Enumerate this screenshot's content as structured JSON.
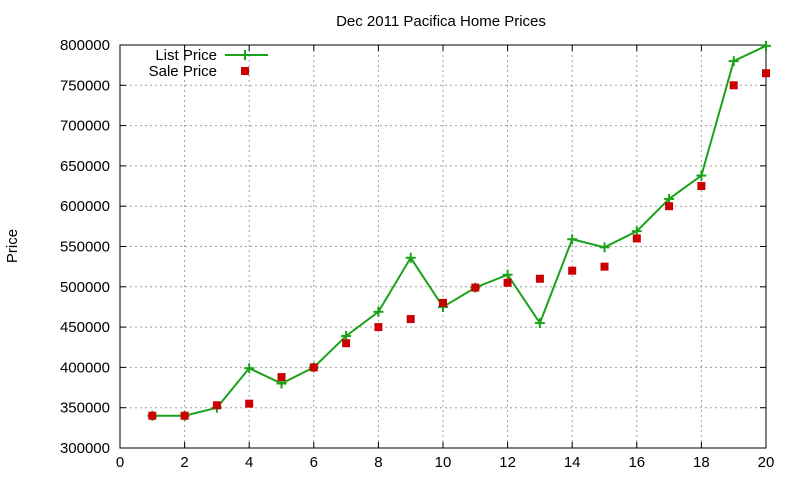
{
  "chart_data": {
    "type": "line",
    "title": "Dec 2011 Pacifica Home Prices",
    "xlabel": "",
    "ylabel": "Price",
    "xlim": [
      0,
      20
    ],
    "ylim": [
      300000,
      800000
    ],
    "x_ticks": [
      "0",
      "2",
      "4",
      "6",
      "8",
      "10",
      "12",
      "14",
      "16",
      "18",
      "20"
    ],
    "y_ticks": [
      "300000",
      "350000",
      "400000",
      "450000",
      "500000",
      "550000",
      "600000",
      "650000",
      "700000",
      "750000",
      "800000"
    ],
    "grid": true,
    "legend_position": "top-left",
    "series": [
      {
        "name": "List Price",
        "kind": "line",
        "marker": "plus",
        "color": "#1aa31a",
        "x": [
          1,
          2,
          3,
          4,
          5,
          6,
          7,
          8,
          9,
          10,
          11,
          12,
          13,
          14,
          15,
          16,
          17,
          18,
          19,
          20
        ],
        "values": [
          340000,
          340000,
          350000,
          399000,
          380000,
          400000,
          439000,
          469000,
          536000,
          475000,
          499000,
          515000,
          455000,
          559000,
          549000,
          569000,
          609000,
          638000,
          780000,
          799000
        ]
      },
      {
        "name": "Sale Price",
        "kind": "scatter",
        "marker": "square",
        "color": "#cc0000",
        "x": [
          1,
          2,
          3,
          4,
          5,
          6,
          7,
          8,
          9,
          10,
          11,
          12,
          13,
          14,
          15,
          16,
          17,
          18,
          19,
          20
        ],
        "values": [
          340000,
          340000,
          353000,
          355000,
          388000,
          400000,
          430000,
          450000,
          460000,
          480000,
          499000,
          505000,
          510000,
          520000,
          525000,
          560000,
          600000,
          625000,
          750000,
          765000
        ]
      }
    ]
  }
}
